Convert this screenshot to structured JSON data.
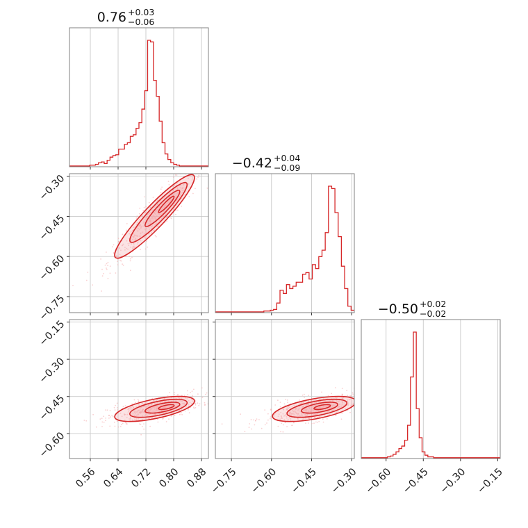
{
  "chart_data": {
    "type": "corner",
    "colors": {
      "series": "#d62728",
      "fill": "#f4a9ac",
      "grid": "#c9c9c9",
      "frame": "#808080"
    },
    "grid": true,
    "parameters": [
      {
        "id": "p0",
        "title_value": "0.76",
        "title_plus": "+0.03",
        "title_minus": "−0.06",
        "range": [
          0.5,
          0.9
        ],
        "ticks": [
          0.56,
          0.64,
          0.72,
          0.8,
          0.88
        ],
        "tick_labels": [
          "0.56",
          "0.64",
          "0.72",
          "0.80",
          "0.88"
        ]
      },
      {
        "id": "p1",
        "title_value": "−0.42",
        "title_plus": "+0.04",
        "title_minus": "−0.09",
        "range": [
          -0.81,
          -0.29
        ],
        "ticks": [
          -0.75,
          -0.6,
          -0.45,
          -0.3
        ],
        "tick_labels": [
          "−0.75",
          "−0.60",
          "−0.45",
          "−0.30"
        ]
      },
      {
        "id": "p2",
        "title_value": "−0.50",
        "title_plus": "+0.02",
        "title_minus": "−0.02",
        "range": [
          -0.7,
          -0.14
        ],
        "ticks": [
          -0.6,
          -0.45,
          -0.3,
          -0.15
        ],
        "tick_labels": [
          "−0.60",
          "−0.45",
          "−0.30",
          "−0.15"
        ]
      }
    ],
    "histograms": [
      {
        "param": "p0",
        "values": [
          1,
          1,
          1,
          1,
          1,
          1,
          1,
          2,
          2,
          3,
          5,
          6,
          4,
          8,
          12,
          14,
          15,
          22,
          22,
          28,
          30,
          38,
          40,
          48,
          55,
          72,
          95,
          158,
          156,
          108,
          88,
          57,
          30,
          16,
          9,
          5,
          3,
          2,
          1,
          1,
          1,
          1,
          1,
          1,
          1,
          1,
          1,
          1
        ]
      },
      {
        "param": "p1",
        "values": [
          1,
          1,
          1,
          1,
          1,
          1,
          1,
          1,
          1,
          1,
          1,
          1,
          1,
          1,
          1,
          2,
          2,
          3,
          4,
          12,
          28,
          24,
          35,
          30,
          33,
          38,
          38,
          48,
          50,
          42,
          60,
          55,
          70,
          78,
          100,
          158,
          155,
          125,
          95,
          58,
          30,
          8,
          3
        ]
      },
      {
        "param": "p2",
        "values": [
          1,
          1,
          1,
          1,
          1,
          1,
          1,
          1,
          1,
          2,
          3,
          5,
          8,
          12,
          15,
          22,
          40,
          98,
          152,
          60,
          25,
          8,
          4,
          2,
          2,
          1,
          1,
          1,
          1,
          1,
          1,
          1,
          1,
          1,
          1,
          1,
          1,
          1,
          1,
          1,
          1,
          1,
          1,
          1,
          1,
          1,
          1,
          1
        ]
      }
    ],
    "joint": [
      {
        "x": "p0",
        "y": "p1",
        "mean": [
          0.745,
          -0.45
        ],
        "sd": [
          0.05,
          0.068
        ],
        "corr": 0.93,
        "peak": [
          0.79,
          -0.39
        ]
      },
      {
        "x": "p0",
        "y": "p2",
        "mean": [
          0.745,
          -0.5
        ],
        "sd": [
          0.05,
          0.022
        ],
        "corr": 0.62,
        "peak": [
          0.79,
          -0.49
        ]
      },
      {
        "x": "p1",
        "y": "p2",
        "mean": [
          -0.44,
          -0.5
        ],
        "sd": [
          0.068,
          0.022
        ],
        "corr": 0.58,
        "peak": [
          -0.4,
          -0.49
        ]
      }
    ]
  }
}
